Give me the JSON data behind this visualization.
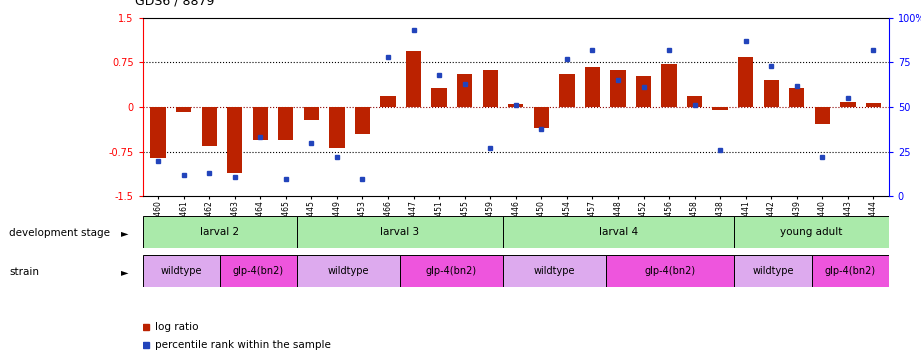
{
  "title": "GDS6 / 8879",
  "samples": [
    "GSM460",
    "GSM461",
    "GSM462",
    "GSM463",
    "GSM464",
    "GSM465",
    "GSM445",
    "GSM449",
    "GSM453",
    "GSM466",
    "GSM447",
    "GSM451",
    "GSM455",
    "GSM459",
    "GSM446",
    "GSM450",
    "GSM454",
    "GSM457",
    "GSM448",
    "GSM452",
    "GSM456",
    "GSM458",
    "GSM438",
    "GSM441",
    "GSM442",
    "GSM439",
    "GSM440",
    "GSM443",
    "GSM444"
  ],
  "log_ratio": [
    -0.85,
    -0.08,
    -0.65,
    -1.1,
    -0.55,
    -0.55,
    -0.22,
    -0.68,
    -0.45,
    0.18,
    0.95,
    0.32,
    0.55,
    0.62,
    0.05,
    -0.35,
    0.55,
    0.68,
    0.62,
    0.52,
    0.72,
    0.18,
    -0.05,
    0.85,
    0.45,
    0.32,
    -0.28,
    0.08,
    0.07
  ],
  "percentile": [
    20,
    12,
    13,
    11,
    33,
    10,
    30,
    22,
    10,
    78,
    93,
    68,
    63,
    27,
    51,
    38,
    77,
    82,
    65,
    61,
    82,
    51,
    26,
    87,
    73,
    62,
    22,
    55,
    82
  ],
  "dev_stage_labels": [
    "larval 2",
    "larval 3",
    "larval 4",
    "young adult"
  ],
  "dev_stage_spans": [
    6,
    8,
    9,
    6
  ],
  "dev_stage_color": "#aaeaaa",
  "strain_labels": [
    "wildtype",
    "glp-4(bn2)",
    "wildtype",
    "glp-4(bn2)",
    "wildtype",
    "glp-4(bn2)",
    "wildtype",
    "glp-4(bn2)"
  ],
  "strain_spans": [
    3,
    3,
    4,
    4,
    4,
    5,
    3,
    3
  ],
  "strain_wt_color": "#ddaaee",
  "strain_mut_color": "#ee55dd",
  "bar_color": "#bb2200",
  "dot_color": "#2244bb",
  "ylim_left": [
    -1.5,
    1.5
  ],
  "ylim_right": [
    0,
    100
  ],
  "yticks_left": [
    -1.5,
    -0.75,
    0.0,
    0.75,
    1.5
  ],
  "ytick_labels_left": [
    "-1.5",
    "-0.75",
    "0",
    "0.75",
    "1.5"
  ],
  "yticks_right": [
    0,
    25,
    50,
    75,
    100
  ],
  "ytick_labels_right": [
    "0",
    "25",
    "50",
    "75",
    "100%"
  ],
  "hlines": [
    -0.75,
    0.0,
    0.75
  ]
}
